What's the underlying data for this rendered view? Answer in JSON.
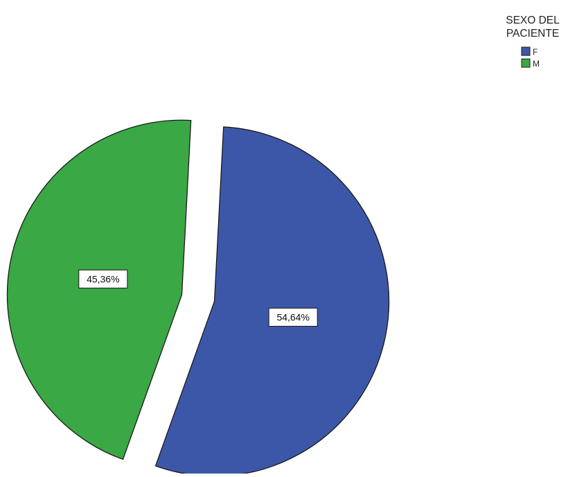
{
  "chart_data": {
    "type": "pie",
    "legend": {
      "title_lines": [
        "SEXO DEL",
        "PACIENTE"
      ],
      "placement": "top-right"
    },
    "slices": [
      {
        "label": "F",
        "value": 54.64,
        "value_label": "54,64%",
        "color": "#3d57a8",
        "exploded": true
      },
      {
        "label": "M",
        "value": 45.36,
        "value_label": "45,36%",
        "color": "#3aa845",
        "exploded": true
      }
    ],
    "start_angle_deg": 0,
    "direction": "clockwise"
  }
}
